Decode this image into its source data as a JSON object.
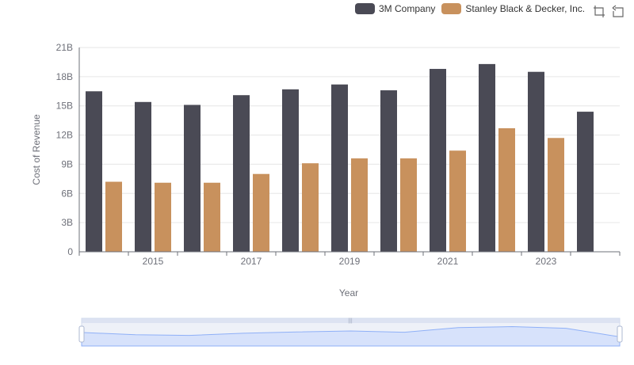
{
  "toolbox": {
    "zoom_icon": "zoom-icon",
    "restore_icon": "restore-icon"
  },
  "colors": {
    "series_0": "#4a4a55",
    "series_1": "#c8915d",
    "grid": "#e6e6e6",
    "axis": "#6e7079"
  },
  "chart_data": {
    "type": "bar",
    "xlabel": "Year",
    "ylabel": "Cost of Revenue",
    "categories": [
      "2014",
      "2015",
      "2016",
      "2017",
      "2018",
      "2019",
      "2020",
      "2021",
      "2022",
      "2023",
      "2024"
    ],
    "x_tick_labels": [
      "2015",
      "2017",
      "2019",
      "2021",
      "2023"
    ],
    "y_tick_labels": [
      "0",
      "3B",
      "6B",
      "9B",
      "12B",
      "15B",
      "18B",
      "21B"
    ],
    "ylim": [
      0,
      21
    ],
    "y_unit": "B",
    "grid": true,
    "legend_position": "top-right",
    "series": [
      {
        "name": "3M Company",
        "values": [
          16.5,
          15.4,
          15.1,
          16.1,
          16.7,
          17.2,
          16.6,
          18.8,
          19.3,
          18.5,
          14.4
        ]
      },
      {
        "name": "Stanley Black & Decker, Inc.",
        "values": [
          7.2,
          7.1,
          7.1,
          8.0,
          9.1,
          9.6,
          9.6,
          10.4,
          12.7,
          11.7,
          null
        ]
      }
    ]
  }
}
